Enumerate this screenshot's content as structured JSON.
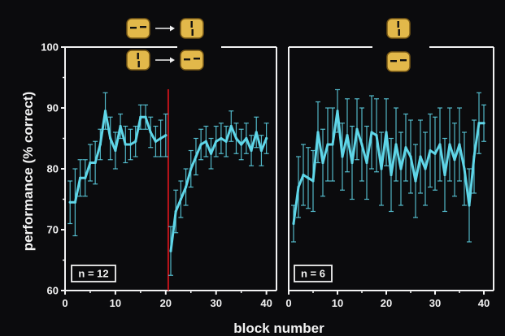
{
  "colors": {
    "background": "#0b0b0d",
    "axes": "#f2f2f2",
    "series": "#5fd6e8",
    "switch_line": "#c0141a",
    "icon_fill": "#e2b84a",
    "icon_stroke": "#7a5a16",
    "icon_bar": "#111111"
  },
  "ylabel": "performance (% correct)",
  "xlabel": "block number",
  "chart_data": [
    {
      "type": "line",
      "panel": "left",
      "xlim": [
        0,
        42
      ],
      "ylim": [
        60,
        100
      ],
      "xticks": [
        0,
        10,
        20,
        30,
        40
      ],
      "yticks": [
        60,
        70,
        80,
        90,
        100
      ],
      "n_label": "n = 12",
      "switch_at": 20.5,
      "icons": [
        {
          "from": "horizontal-bars",
          "to": "vertical-bars"
        },
        {
          "from": "vertical-bars",
          "to": "horizontal-bars"
        }
      ],
      "x": [
        1,
        2,
        3,
        4,
        5,
        6,
        7,
        8,
        9,
        10,
        11,
        12,
        13,
        14,
        15,
        16,
        17,
        18,
        19,
        20,
        21,
        22,
        23,
        24,
        25,
        26,
        27,
        28,
        29,
        30,
        31,
        32,
        33,
        34,
        35,
        36,
        37,
        38,
        39,
        40
      ],
      "y": [
        74.5,
        74.5,
        78.5,
        78.5,
        81,
        81,
        84,
        89.5,
        85,
        83,
        87,
        84,
        84,
        84.5,
        88.5,
        88.5,
        86,
        84.5,
        85,
        85.5,
        66.5,
        73,
        75,
        77,
        80,
        82,
        84,
        84.5,
        82.5,
        84.5,
        85,
        84.5,
        87,
        85,
        84,
        85,
        83,
        86,
        83,
        85
      ],
      "err": [
        3.5,
        5.5,
        3,
        3,
        3,
        3.5,
        2.5,
        3,
        3.5,
        3,
        2,
        3,
        2.5,
        2.5,
        2,
        2,
        2.5,
        2.5,
        3,
        3.5,
        4,
        3.5,
        3,
        3,
        3,
        3,
        2.5,
        2.5,
        2.5,
        2.5,
        2.5,
        2.5,
        2.5,
        2.5,
        2.5,
        2.5,
        2.5,
        2.5,
        2.5,
        2.5
      ]
    },
    {
      "type": "line",
      "panel": "right",
      "xlim": [
        0,
        42
      ],
      "ylim": [
        60,
        100
      ],
      "xticks": [
        0,
        10,
        20,
        30,
        40
      ],
      "yticks": [],
      "n_label": "n = 6",
      "icons": [
        {
          "shape": "vertical-bars"
        },
        {
          "shape": "horizontal-bars"
        }
      ],
      "x": [
        1,
        2,
        3,
        4,
        5,
        6,
        7,
        8,
        9,
        10,
        11,
        12,
        13,
        14,
        15,
        16,
        17,
        18,
        19,
        20,
        21,
        22,
        23,
        24,
        25,
        26,
        27,
        28,
        29,
        30,
        31,
        32,
        33,
        34,
        35,
        36,
        37,
        38,
        39,
        40
      ],
      "y": [
        71,
        77,
        79,
        78.5,
        78,
        86,
        81,
        84,
        84,
        89.5,
        82,
        85.5,
        81,
        86.5,
        84,
        81,
        86,
        85.5,
        80,
        86,
        79,
        84,
        80,
        83.5,
        82,
        78,
        82,
        80,
        83,
        82.5,
        84,
        79,
        84,
        81.5,
        84,
        80,
        74,
        82,
        87.5,
        87.5
      ],
      "err": [
        3,
        5,
        5,
        5,
        5,
        5,
        5.5,
        6,
        6,
        3.5,
        5.5,
        6,
        6,
        5,
        6,
        6,
        6,
        6,
        6,
        5.5,
        6,
        6,
        6,
        5.5,
        6,
        6,
        6,
        6,
        6,
        6,
        6,
        6,
        6,
        6,
        6,
        6,
        6,
        6,
        5,
        3
      ]
    }
  ]
}
